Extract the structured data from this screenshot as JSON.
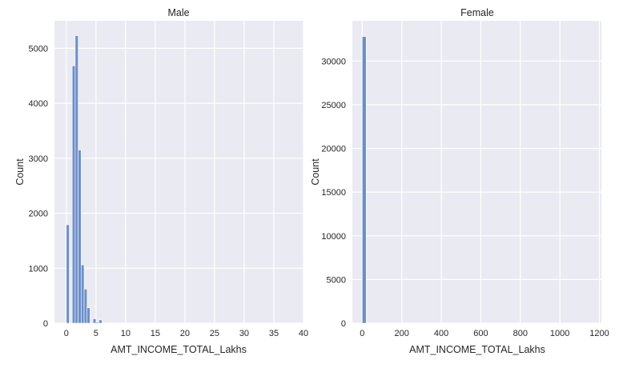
{
  "chart_data": [
    {
      "type": "bar",
      "title": "Male",
      "xlabel": "AMT_INCOME_TOTAL_Lakhs",
      "ylabel": "Count",
      "xlim": [
        -2.0,
        40.0
      ],
      "ylim": [
        0,
        5500
      ],
      "xticks": [
        0,
        5,
        10,
        15,
        20,
        25,
        30,
        35,
        40
      ],
      "yticks": [
        0,
        1000,
        2000,
        3000,
        4000,
        5000
      ],
      "grid": true,
      "bin_width": 0.5,
      "bins_start": [
        0.0,
        0.5,
        1.0,
        1.5,
        2.0,
        2.5,
        3.0,
        3.5,
        4.0,
        4.5,
        5.0,
        5.5,
        6.0,
        6.5,
        7.0,
        7.5,
        8.0,
        8.5,
        9.0
      ],
      "values": [
        1790,
        0,
        4680,
        5230,
        3150,
        1060,
        620,
        280,
        0,
        80,
        20,
        60,
        10,
        10,
        5,
        5,
        5,
        3,
        3
      ]
    },
    {
      "type": "bar",
      "title": "Female",
      "xlabel": "AMT_INCOME_TOTAL_Lakhs",
      "ylabel": "Count",
      "xlim": [
        -50,
        1210
      ],
      "ylim": [
        0,
        34600
      ],
      "xticks": [
        0,
        200,
        400,
        600,
        800,
        1000,
        1200
      ],
      "yticks": [
        0,
        5000,
        10000,
        15000,
        20000,
        25000,
        30000
      ],
      "grid": true,
      "bin_width": 20,
      "bins_start": [
        0,
        20,
        40,
        60,
        80,
        100,
        120,
        140,
        160,
        180,
        200
      ],
      "values": [
        32800,
        0,
        0,
        0,
        0,
        0,
        0,
        0,
        0,
        0,
        0
      ]
    }
  ]
}
